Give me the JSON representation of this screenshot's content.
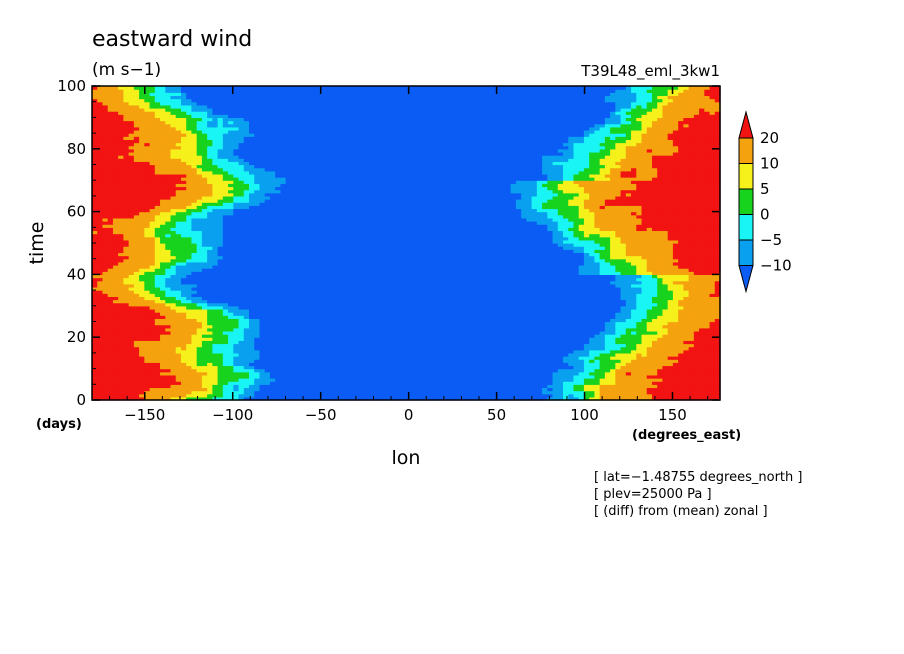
{
  "chart_data": {
    "type": "heatmap",
    "title": "eastward wind",
    "units": "(m s−1)",
    "run_label": "T39L48_eml_3kw1",
    "xlabel": "lon",
    "x_units": "(degrees_east)",
    "ylabel": "time",
    "y_units": "(days)",
    "xlim": [
      -180,
      177
    ],
    "ylim": [
      0,
      100
    ],
    "x_ticks": [
      -150,
      -100,
      -50,
      0,
      50,
      100,
      150
    ],
    "x_tick_labels": [
      "−150",
      "−100",
      "−50",
      "0",
      "50",
      "100",
      "150"
    ],
    "y_ticks": [
      0,
      20,
      40,
      60,
      80,
      100
    ],
    "y_tick_labels": [
      "0",
      "20",
      "40",
      "60",
      "80",
      "100"
    ],
    "colorbar": {
      "levels": [
        -10,
        -5,
        0,
        5,
        10,
        20
      ],
      "level_labels": [
        "−10",
        "−5",
        "0",
        "5",
        "10",
        "20"
      ],
      "colors": [
        "#0b5cf5",
        "#0aa0f0",
        "#19f5f5",
        "#17d31e",
        "#f6f01b",
        "#f5a20f",
        "#f21313"
      ]
    },
    "grid": false,
    "notes": [
      "[ lat=−1.48755 degrees_north ]",
      "[ plev=25000 Pa ]",
      "[ (diff) from (mean) zonal ]"
    ],
    "pattern": "westerly (positive) anomalies at lon < -120 and lon > 120, easterly (negative) anomalies over -100 to 100"
  }
}
